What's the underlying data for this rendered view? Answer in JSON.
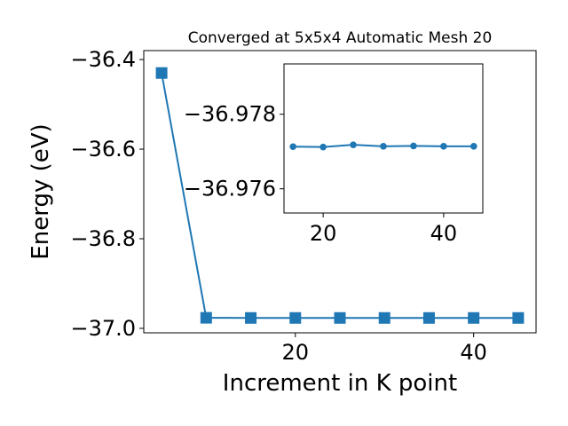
{
  "chart_data": [
    {
      "type": "line",
      "title": "Converged at 5x5x4 Automatic Mesh 20",
      "xlabel": "Increment in K point",
      "ylabel": "Energy (eV)",
      "x": [
        5,
        10,
        15,
        20,
        25,
        30,
        35,
        40,
        45
      ],
      "series": [
        {
          "values": [
            -36.43,
            -36.9765,
            -36.9768,
            -36.9768,
            -36.9768,
            -36.9768,
            -36.9768,
            -36.9768,
            -36.9768
          ],
          "color": "#1f77b4",
          "marker": "square"
        }
      ],
      "xlim": [
        3.0,
        47.0
      ],
      "ylim": [
        -37.01,
        -36.38
      ],
      "xticks": [
        20,
        40
      ],
      "xtick_labels": [
        "20",
        "40"
      ],
      "yticks": [
        -37.0,
        -36.8,
        -36.6,
        -36.4
      ],
      "ytick_labels": [
        "−37.0",
        "−36.8",
        "−36.6",
        "−36.4"
      ],
      "grid": false
    },
    {
      "type": "line",
      "title": "",
      "x": [
        15,
        20,
        25,
        30,
        35,
        40,
        45
      ],
      "series": [
        {
          "values": [
            -36.97713,
            -36.97712,
            -36.97718,
            -36.97714,
            -36.97715,
            -36.97714,
            -36.97714
          ],
          "color": "#1f77b4",
          "marker": "circle"
        }
      ],
      "xlim": [
        13.5,
        46.5
      ],
      "ylim": [
        -36.97935,
        -36.97535
      ],
      "xticks": [
        20,
        40
      ],
      "xtick_labels": [
        "20",
        "40"
      ],
      "yticks": [
        -36.976,
        -36.978
      ],
      "ytick_labels": [
        "−36.976",
        "−36.978"
      ],
      "y_inverted": true,
      "grid": false
    }
  ]
}
